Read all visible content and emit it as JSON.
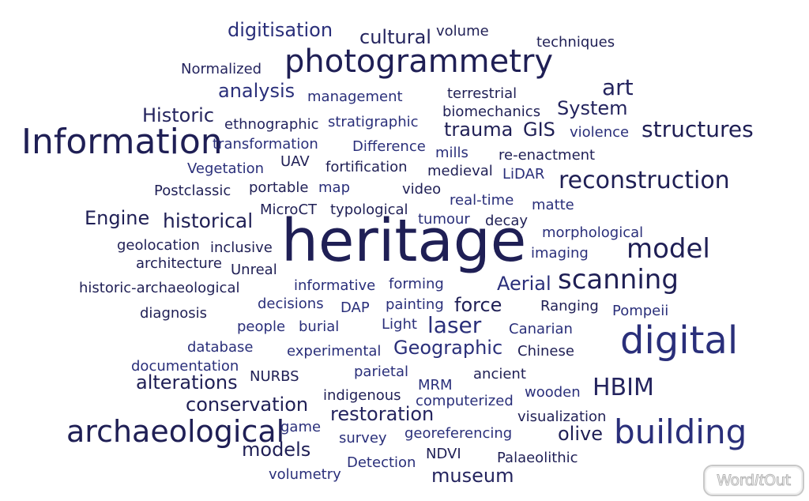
{
  "words": [
    {
      "text": "heritage",
      "size": 74,
      "color": "#1f1f55"
    },
    {
      "text": "Information",
      "size": 44,
      "color": "#1f1f55"
    },
    {
      "text": "photogrammetry",
      "size": 40,
      "color": "#1f1f55"
    },
    {
      "text": "digital",
      "size": 48,
      "color": "#2a2f7a"
    },
    {
      "text": "building",
      "size": 42,
      "color": "#2a2f7a"
    },
    {
      "text": "archaeological",
      "size": 38,
      "color": "#1f1f55"
    },
    {
      "text": "scanning",
      "size": 34,
      "color": "#1f1f55"
    },
    {
      "text": "model",
      "size": 34,
      "color": "#1f1f55"
    },
    {
      "text": "reconstruction",
      "size": 30,
      "color": "#1f1f55"
    },
    {
      "text": "structures",
      "size": 28,
      "color": "#1f1f55"
    },
    {
      "text": "HBIM",
      "size": 30,
      "color": "#24245e"
    },
    {
      "text": "art",
      "size": 28,
      "color": "#24245e"
    },
    {
      "text": "laser",
      "size": 28,
      "color": "#2a2f7a"
    },
    {
      "text": "historical",
      "size": 25,
      "color": "#1f1f55"
    },
    {
      "text": "digitisation",
      "size": 24,
      "color": "#2a2f7a"
    },
    {
      "text": "cultural",
      "size": 24,
      "color": "#24245e"
    },
    {
      "text": "analysis",
      "size": 24,
      "color": "#2a2f7a"
    },
    {
      "text": "Historic",
      "size": 24,
      "color": "#24245e"
    },
    {
      "text": "System",
      "size": 24,
      "color": "#24245e"
    },
    {
      "text": "trauma",
      "size": 24,
      "color": "#1f1f55"
    },
    {
      "text": "GIS",
      "size": 24,
      "color": "#1f1f55"
    },
    {
      "text": "Engine",
      "size": 24,
      "color": "#1f1f55"
    },
    {
      "text": "Aerial",
      "size": 24,
      "color": "#2a2f7a"
    },
    {
      "text": "force",
      "size": 24,
      "color": "#1f1f55"
    },
    {
      "text": "Geographic",
      "size": 24,
      "color": "#2a2f7a"
    },
    {
      "text": "alterations",
      "size": 24,
      "color": "#1f1f55"
    },
    {
      "text": "conservation",
      "size": 24,
      "color": "#1f1f55"
    },
    {
      "text": "restoration",
      "size": 24,
      "color": "#24245e"
    },
    {
      "text": "olive",
      "size": 24,
      "color": "#1f1f55"
    },
    {
      "text": "models",
      "size": 24,
      "color": "#1f1f55"
    },
    {
      "text": "museum",
      "size": 24,
      "color": "#24245e"
    },
    {
      "text": "volume",
      "size": 18,
      "color": "#1f1f55"
    },
    {
      "text": "techniques",
      "size": 18,
      "color": "#1f1f55"
    },
    {
      "text": "Normalized",
      "size": 18,
      "color": "#24245e"
    },
    {
      "text": "management",
      "size": 18,
      "color": "#2a2f7a"
    },
    {
      "text": "terrestrial",
      "size": 18,
      "color": "#1f1f55"
    },
    {
      "text": "biomechanics",
      "size": 18,
      "color": "#1f1f55"
    },
    {
      "text": "ethnographic",
      "size": 18,
      "color": "#24245e"
    },
    {
      "text": "stratigraphic",
      "size": 18,
      "color": "#2a2f7a"
    },
    {
      "text": "violence",
      "size": 18,
      "color": "#2a2f7a"
    },
    {
      "text": "transformation",
      "size": 18,
      "color": "#2a2f7a"
    },
    {
      "text": "Difference",
      "size": 18,
      "color": "#2a2f7a"
    },
    {
      "text": "mills",
      "size": 18,
      "color": "#2a2f7a"
    },
    {
      "text": "re-enactment",
      "size": 18,
      "color": "#1f1f55"
    },
    {
      "text": "Vegetation",
      "size": 18,
      "color": "#2a2f7a"
    },
    {
      "text": "UAV",
      "size": 18,
      "color": "#1f1f55"
    },
    {
      "text": "fortification",
      "size": 18,
      "color": "#1f1f55"
    },
    {
      "text": "medieval",
      "size": 18,
      "color": "#1f1f55"
    },
    {
      "text": "LiDAR",
      "size": 18,
      "color": "#2a2f7a"
    },
    {
      "text": "Postclassic",
      "size": 18,
      "color": "#1f1f55"
    },
    {
      "text": "portable",
      "size": 18,
      "color": "#1f1f55"
    },
    {
      "text": "map",
      "size": 18,
      "color": "#2a2f7a"
    },
    {
      "text": "video",
      "size": 18,
      "color": "#1f1f55"
    },
    {
      "text": "real-time",
      "size": 18,
      "color": "#2a2f7a"
    },
    {
      "text": "matte",
      "size": 18,
      "color": "#2a2f7a"
    },
    {
      "text": "MicroCT",
      "size": 18,
      "color": "#1f1f55"
    },
    {
      "text": "typological",
      "size": 18,
      "color": "#1f1f55"
    },
    {
      "text": "tumour",
      "size": 18,
      "color": "#2a2f7a"
    },
    {
      "text": "decay",
      "size": 18,
      "color": "#1f1f55"
    },
    {
      "text": "morphological",
      "size": 18,
      "color": "#2a2f7a"
    },
    {
      "text": "geolocation",
      "size": 18,
      "color": "#1f1f55"
    },
    {
      "text": "inclusive",
      "size": 18,
      "color": "#1f1f55"
    },
    {
      "text": "imaging",
      "size": 18,
      "color": "#2a2f7a"
    },
    {
      "text": "architecture",
      "size": 18,
      "color": "#1f1f55"
    },
    {
      "text": "Unreal",
      "size": 18,
      "color": "#1f1f55"
    },
    {
      "text": "historic-archaeological",
      "size": 18,
      "color": "#1f1f55"
    },
    {
      "text": "informative",
      "size": 18,
      "color": "#2a2f7a"
    },
    {
      "text": "forming",
      "size": 18,
      "color": "#2a2f7a"
    },
    {
      "text": "decisions",
      "size": 18,
      "color": "#2a2f7a"
    },
    {
      "text": "DAP",
      "size": 18,
      "color": "#2a2f7a"
    },
    {
      "text": "painting",
      "size": 18,
      "color": "#2a2f7a"
    },
    {
      "text": "Ranging",
      "size": 18,
      "color": "#1f1f55"
    },
    {
      "text": "Pompeii",
      "size": 18,
      "color": "#2a2f7a"
    },
    {
      "text": "diagnosis",
      "size": 18,
      "color": "#1f1f55"
    },
    {
      "text": "people",
      "size": 18,
      "color": "#2a2f7a"
    },
    {
      "text": "burial",
      "size": 18,
      "color": "#2a2f7a"
    },
    {
      "text": "Light",
      "size": 18,
      "color": "#2a2f7a"
    },
    {
      "text": "Canarian",
      "size": 18,
      "color": "#2a2f7a"
    },
    {
      "text": "database",
      "size": 18,
      "color": "#2a2f7a"
    },
    {
      "text": "experimental",
      "size": 18,
      "color": "#2a2f7a"
    },
    {
      "text": "Chinese",
      "size": 18,
      "color": "#1f1f55"
    },
    {
      "text": "documentation",
      "size": 18,
      "color": "#2a2f7a"
    },
    {
      "text": "NURBS",
      "size": 18,
      "color": "#1f1f55"
    },
    {
      "text": "parietal",
      "size": 18,
      "color": "#2a2f7a"
    },
    {
      "text": "ancient",
      "size": 18,
      "color": "#1f1f55"
    },
    {
      "text": "indigenous",
      "size": 18,
      "color": "#1f1f55"
    },
    {
      "text": "MRM",
      "size": 18,
      "color": "#2a2f7a"
    },
    {
      "text": "wooden",
      "size": 18,
      "color": "#2a2f7a"
    },
    {
      "text": "computerized",
      "size": 18,
      "color": "#2a2f7a"
    },
    {
      "text": "visualization",
      "size": 18,
      "color": "#1f1f55"
    },
    {
      "text": "game",
      "size": 18,
      "color": "#2a2f7a"
    },
    {
      "text": "georeferencing",
      "size": 18,
      "color": "#2a2f7a"
    },
    {
      "text": "survey",
      "size": 18,
      "color": "#2a2f7a"
    },
    {
      "text": "NDVI",
      "size": 18,
      "color": "#1f1f55"
    },
    {
      "text": "Palaeolithic",
      "size": 18,
      "color": "#1f1f55"
    },
    {
      "text": "Detection",
      "size": 18,
      "color": "#2a2f7a"
    },
    {
      "text": "volumetry",
      "size": 18,
      "color": "#2a2f7a"
    }
  ],
  "logo": {
    "part1": "Word",
    "part2": "It",
    "part3": "Out"
  }
}
